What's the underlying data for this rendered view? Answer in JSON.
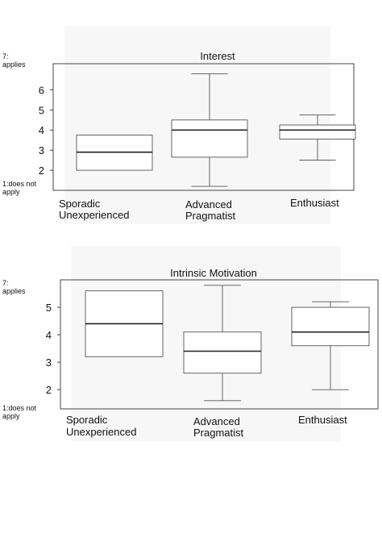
{
  "side_labels": {
    "top": [
      "7:",
      "applies"
    ],
    "bottom": [
      "1:does not",
      "apply"
    ]
  },
  "chart_data": [
    {
      "type": "box",
      "title": "Interest",
      "categories": [
        "Sporadic Unexperienced",
        "Advanced Pragmatist",
        "Enthusiast"
      ],
      "category_lines": [
        [
          "Sporadic",
          "Unexperienced"
        ],
        [
          "Advanced",
          "Pragmatist"
        ],
        [
          "Enthusiast"
        ]
      ],
      "yticks": [
        2,
        3,
        4,
        5,
        6
      ],
      "ylim": [
        1.0,
        7.3
      ],
      "boxes": [
        {
          "category": "Sporadic Unexperienced",
          "min": 2.0,
          "q1": 2.0,
          "median": 2.9,
          "q3": 3.75,
          "max": 3.75
        },
        {
          "category": "Advanced Pragmatist",
          "min": 1.2,
          "q1": 2.65,
          "median": 4.0,
          "q3": 4.5,
          "max": 6.8
        },
        {
          "category": "Enthusiast",
          "min": 2.5,
          "q1": 3.55,
          "median": 4.0,
          "q3": 4.25,
          "max": 4.75
        }
      ]
    },
    {
      "type": "box",
      "title": "Intrinsic Motivation",
      "categories": [
        "Sporadic Unexperienced",
        "Advanced Pragmatist",
        "Enthusiast"
      ],
      "category_lines": [
        [
          "Sporadic",
          "Unexperienced"
        ],
        [
          "Advanced",
          "Pragmatist"
        ],
        [
          "Enthusiast"
        ]
      ],
      "yticks": [
        2,
        3,
        4,
        5
      ],
      "ylim": [
        1.3,
        6.0
      ],
      "boxes": [
        {
          "category": "Sporadic Unexperienced",
          "min": 3.2,
          "q1": 3.2,
          "median": 4.4,
          "q3": 5.6,
          "max": 5.6
        },
        {
          "category": "Advanced Pragmatist",
          "min": 1.6,
          "q1": 2.6,
          "median": 3.4,
          "q3": 4.1,
          "max": 5.8
        },
        {
          "category": "Enthusiast",
          "min": 2.0,
          "q1": 3.6,
          "median": 4.1,
          "q3": 5.0,
          "max": 5.2
        }
      ]
    }
  ]
}
